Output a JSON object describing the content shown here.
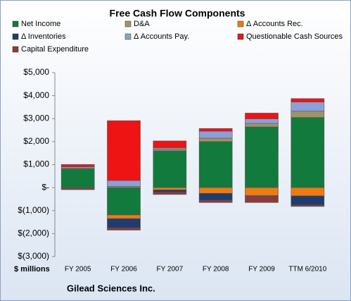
{
  "chart_data": {
    "type": "stacked-bar",
    "title": "Free Cash Flow Components",
    "y_axis_label": "$ millions",
    "footer": "Gilead Sciences Inc.",
    "categories": [
      "FY 2005",
      "FY 2006",
      "FY 2007",
      "FY 2008",
      "FY 2009",
      "TTM 6/2010"
    ],
    "series": [
      {
        "name": "Net Income",
        "color": "#127a3c",
        "values": [
          814,
          -1190,
          1600,
          2000,
          2640,
          3050
        ]
      },
      {
        "name": "D&A",
        "color": "#a09466",
        "values": [
          40,
          50,
          80,
          150,
          150,
          270
        ]
      },
      {
        "name": "Δ Accounts Rec.",
        "color": "#ee7a12",
        "values": [
          -20,
          -160,
          -100,
          -250,
          -350,
          -360
        ]
      },
      {
        "name": "Δ Inventories",
        "color": "#1f3c6e",
        "values": [
          -20,
          -400,
          -100,
          -300,
          -30,
          -400
        ]
      },
      {
        "name": "Δ Accounts Pay.",
        "color": "#8c9fd8",
        "values": [
          50,
          260,
          50,
          300,
          200,
          400
        ]
      },
      {
        "name": "Questionable Cash Sources",
        "color": "#ee1414",
        "values": [
          100,
          2600,
          300,
          120,
          250,
          150
        ]
      },
      {
        "name": "Capital Expenditure",
        "color": "#8b3b3b",
        "values": [
          -50,
          -100,
          -100,
          -100,
          -270,
          -60
        ]
      }
    ],
    "ylim": [
      -3000,
      5000
    ],
    "yticks": [
      {
        "value": -3000,
        "label": "$(3,000)"
      },
      {
        "value": -2000,
        "label": "$(2,000)"
      },
      {
        "value": -1000,
        "label": "$(1,000)"
      },
      {
        "value": 0,
        "label": "$-"
      },
      {
        "value": 1000,
        "label": "$1,000"
      },
      {
        "value": 2000,
        "label": "$2,000"
      },
      {
        "value": 3000,
        "label": "$3,000"
      },
      {
        "value": 4000,
        "label": "$4,000"
      },
      {
        "value": 5000,
        "label": "$5,000"
      }
    ],
    "grid": false
  }
}
